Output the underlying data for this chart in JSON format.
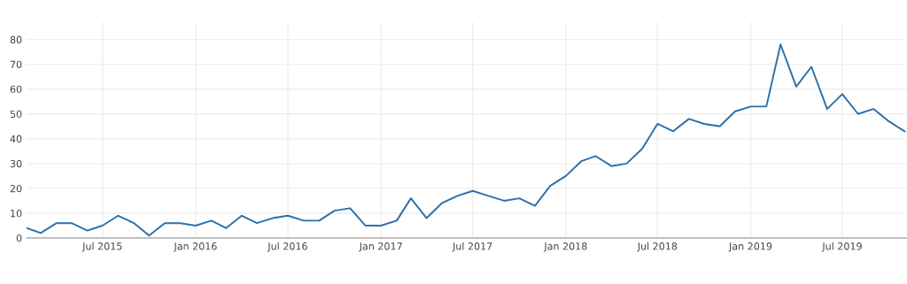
{
  "chart_data": {
    "type": "line",
    "x": [
      "2015-02",
      "2015-03",
      "2015-04",
      "2015-05",
      "2015-06",
      "2015-07",
      "2015-08",
      "2015-09",
      "2015-10",
      "2015-11",
      "2015-12",
      "2016-01",
      "2016-02",
      "2016-03",
      "2016-04",
      "2016-05",
      "2016-06",
      "2016-07",
      "2016-08",
      "2016-09",
      "2016-10",
      "2016-11",
      "2016-12",
      "2017-01",
      "2017-02",
      "2017-03",
      "2017-04",
      "2017-05",
      "2017-06",
      "2017-07",
      "2017-08",
      "2017-09",
      "2017-10",
      "2017-11",
      "2017-12",
      "2018-01",
      "2018-02",
      "2018-03",
      "2018-04",
      "2018-05",
      "2018-06",
      "2018-07",
      "2018-08",
      "2018-09",
      "2018-10",
      "2018-11",
      "2018-12",
      "2019-01",
      "2019-02",
      "2019-03",
      "2019-04",
      "2019-05",
      "2019-06",
      "2019-07",
      "2019-08",
      "2019-09",
      "2019-10",
      "2019-11"
    ],
    "series": [
      {
        "color": "#2e6fab",
        "values": [
          4,
          2,
          6,
          6,
          3,
          5,
          9,
          6,
          1,
          6,
          6,
          5,
          7,
          4,
          9,
          6,
          8,
          9,
          7,
          7,
          11,
          12,
          5,
          5,
          7,
          16,
          8,
          14,
          17,
          19,
          17,
          15,
          16,
          13,
          21,
          25,
          31,
          33,
          29,
          30,
          36,
          46,
          43,
          48,
          46,
          45,
          51,
          53,
          53,
          78,
          61,
          69,
          52,
          58,
          50,
          52,
          47,
          43
        ]
      }
    ],
    "xlim": [
      "2015-02-01",
      "2019-11-04"
    ],
    "xticks": [
      {
        "value": "2015-07-01",
        "label": "Jul 2015"
      },
      {
        "value": "2016-01-01",
        "label": "Jan 2016"
      },
      {
        "value": "2016-07-01",
        "label": "Jul 2016"
      },
      {
        "value": "2017-01-01",
        "label": "Jan 2017"
      },
      {
        "value": "2017-07-01",
        "label": "Jul 2017"
      },
      {
        "value": "2018-01-01",
        "label": "Jan 2018"
      },
      {
        "value": "2018-07-01",
        "label": "Jul 2018"
      },
      {
        "value": "2019-01-01",
        "label": "Jan 2019"
      },
      {
        "value": "2019-07-01",
        "label": "Jul 2019"
      }
    ],
    "ylim": [
      0,
      87
    ],
    "yticks": [
      0,
      10,
      20,
      30,
      40,
      50,
      60,
      70,
      80
    ],
    "grid": true,
    "legend": false,
    "marker": "none",
    "line_style": "solid"
  }
}
